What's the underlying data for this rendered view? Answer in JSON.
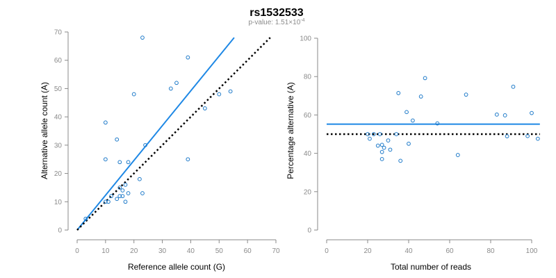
{
  "header": {
    "title": "rs1532533",
    "pvalue_prefix": "p-value: 1.51×10",
    "pvalue_exp": "-4"
  },
  "colors": {
    "points": "#1e7ac9",
    "fit_line": "#1e88e5",
    "reference_line": "#000000",
    "axis": "#8a8a8a"
  },
  "chart_data": [
    {
      "type": "scatter",
      "xlabel": "Reference allele count (G)",
      "ylabel": "Alternative allele count (A)",
      "xlim": [
        0,
        70
      ],
      "ylim": [
        0,
        70
      ],
      "xticks": [
        0,
        10,
        20,
        30,
        40,
        50,
        60,
        70
      ],
      "yticks": [
        0,
        10,
        20,
        30,
        40,
        50,
        60,
        70
      ],
      "grid": false,
      "points": [
        {
          "x": 3,
          "y": 4
        },
        {
          "x": 10,
          "y": 38
        },
        {
          "x": 10,
          "y": 25
        },
        {
          "x": 10,
          "y": 10
        },
        {
          "x": 11,
          "y": 10
        },
        {
          "x": 12,
          "y": 12
        },
        {
          "x": 14,
          "y": 32
        },
        {
          "x": 14,
          "y": 11
        },
        {
          "x": 15,
          "y": 24
        },
        {
          "x": 15,
          "y": 15
        },
        {
          "x": 15,
          "y": 12
        },
        {
          "x": 16,
          "y": 14
        },
        {
          "x": 16,
          "y": 12
        },
        {
          "x": 17,
          "y": 10
        },
        {
          "x": 17,
          "y": 16
        },
        {
          "x": 18,
          "y": 24
        },
        {
          "x": 18,
          "y": 13
        },
        {
          "x": 20,
          "y": 48
        },
        {
          "x": 22,
          "y": 18
        },
        {
          "x": 23,
          "y": 68
        },
        {
          "x": 23,
          "y": 13
        },
        {
          "x": 24,
          "y": 30
        },
        {
          "x": 33,
          "y": 50
        },
        {
          "x": 35,
          "y": 52
        },
        {
          "x": 39,
          "y": 61
        },
        {
          "x": 39,
          "y": 25
        },
        {
          "x": 45,
          "y": 43
        },
        {
          "x": 50,
          "y": 48
        },
        {
          "x": 54,
          "y": 49
        }
      ],
      "lines": [
        {
          "style": "solid",
          "color": "#1e88e5",
          "from": [
            0,
            0
          ],
          "to": [
            55.3,
            68
          ]
        },
        {
          "style": "dotted",
          "color": "#000000",
          "from": [
            0,
            0
          ],
          "to": [
            68,
            68
          ]
        }
      ]
    },
    {
      "type": "scatter",
      "xlabel": "Total number of reads",
      "ylabel": "Percentage alternative (A)",
      "xlim": [
        0,
        100
      ],
      "ylim": [
        0,
        100
      ],
      "xticks": [
        0,
        20,
        40,
        60,
        80,
        100
      ],
      "yticks": [
        0,
        20,
        40,
        60,
        80,
        100
      ],
      "grid": false,
      "points": [
        {
          "x": 20,
          "y": 50
        },
        {
          "x": 21,
          "y": 47.6
        },
        {
          "x": 23,
          "y": 50
        },
        {
          "x": 25,
          "y": 44
        },
        {
          "x": 26,
          "y": 50
        },
        {
          "x": 27,
          "y": 37
        },
        {
          "x": 27,
          "y": 40.7
        },
        {
          "x": 27,
          "y": 44.4
        },
        {
          "x": 28,
          "y": 42.9
        },
        {
          "x": 30,
          "y": 46.7
        },
        {
          "x": 31,
          "y": 41.9
        },
        {
          "x": 34,
          "y": 50
        },
        {
          "x": 35,
          "y": 71.4
        },
        {
          "x": 36,
          "y": 36.1
        },
        {
          "x": 39,
          "y": 61.5
        },
        {
          "x": 40,
          "y": 45
        },
        {
          "x": 42,
          "y": 57.1
        },
        {
          "x": 46,
          "y": 69.6
        },
        {
          "x": 48,
          "y": 79.2
        },
        {
          "x": 54,
          "y": 55.6
        },
        {
          "x": 64,
          "y": 39.1
        },
        {
          "x": 68,
          "y": 70.6
        },
        {
          "x": 83,
          "y": 60.2
        },
        {
          "x": 87,
          "y": 59.8
        },
        {
          "x": 88,
          "y": 48.9
        },
        {
          "x": 91,
          "y": 74.7
        },
        {
          "x": 98,
          "y": 49
        },
        {
          "x": 100,
          "y": 61
        },
        {
          "x": 103,
          "y": 47.6
        }
      ],
      "lines": [
        {
          "style": "solid",
          "color": "#1e88e5",
          "from": [
            0,
            55.2
          ],
          "to": [
            104,
            55.2
          ]
        },
        {
          "style": "dotted",
          "color": "#000000",
          "from": [
            0,
            50
          ],
          "to": [
            104,
            50
          ]
        }
      ]
    }
  ]
}
